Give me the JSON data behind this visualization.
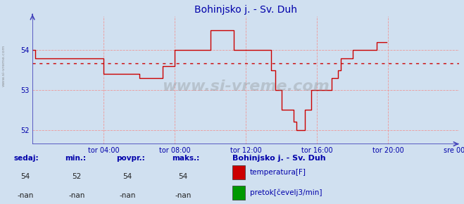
{
  "title": "Bohinjsko j. - Sv. Duh",
  "bg_color": "#d0e0f0",
  "plot_bg_color": "#d0e0f0",
  "line_color": "#cc0000",
  "avg_line_color": "#cc0000",
  "axis_color": "#4444bb",
  "grid_color": "#ee9999",
  "text_color": "#0000aa",
  "ylim": [
    51.65,
    54.85
  ],
  "yticks": [
    52,
    53,
    54
  ],
  "xlim": [
    0,
    288
  ],
  "xtick_positions": [
    48,
    96,
    144,
    192,
    240,
    288
  ],
  "xtick_labels": [
    "tor 04:00",
    "tor 08:00",
    "tor 12:00",
    "tor 16:00",
    "tor 20:00",
    "sre 00:00"
  ],
  "avg_value": 53.68,
  "temp_data": [
    54.0,
    54.0,
    53.8,
    53.8,
    53.8,
    53.8,
    53.8,
    53.8,
    53.8,
    53.8,
    53.8,
    53.8,
    53.8,
    53.8,
    53.8,
    53.8,
    53.8,
    53.8,
    53.8,
    53.8,
    53.8,
    53.8,
    53.8,
    53.8,
    53.8,
    53.8,
    53.8,
    53.8,
    53.8,
    53.8,
    53.8,
    53.8,
    53.8,
    53.8,
    53.8,
    53.8,
    53.8,
    53.8,
    53.8,
    53.8,
    53.8,
    53.8,
    53.8,
    53.8,
    53.8,
    53.8,
    53.8,
    53.8,
    53.4,
    53.4,
    53.4,
    53.4,
    53.4,
    53.4,
    53.4,
    53.4,
    53.4,
    53.4,
    53.4,
    53.4,
    53.4,
    53.4,
    53.4,
    53.4,
    53.4,
    53.4,
    53.4,
    53.4,
    53.4,
    53.4,
    53.4,
    53.4,
    53.3,
    53.3,
    53.3,
    53.3,
    53.3,
    53.3,
    53.3,
    53.3,
    53.3,
    53.3,
    53.3,
    53.3,
    53.3,
    53.3,
    53.3,
    53.3,
    53.6,
    53.6,
    53.6,
    53.6,
    53.6,
    53.6,
    53.6,
    53.6,
    54.0,
    54.0,
    54.0,
    54.0,
    54.0,
    54.0,
    54.0,
    54.0,
    54.0,
    54.0,
    54.0,
    54.0,
    54.0,
    54.0,
    54.0,
    54.0,
    54.0,
    54.0,
    54.0,
    54.0,
    54.0,
    54.0,
    54.0,
    54.0,
    54.5,
    54.5,
    54.5,
    54.5,
    54.5,
    54.5,
    54.5,
    54.5,
    54.5,
    54.5,
    54.5,
    54.5,
    54.5,
    54.5,
    54.5,
    54.5,
    54.0,
    54.0,
    54.0,
    54.0,
    54.0,
    54.0,
    54.0,
    54.0,
    54.0,
    54.0,
    54.0,
    54.0,
    54.0,
    54.0,
    54.0,
    54.0,
    54.0,
    54.0,
    54.0,
    54.0,
    54.0,
    54.0,
    54.0,
    54.0,
    54.0,
    53.5,
    53.5,
    53.5,
    53.0,
    53.0,
    53.0,
    53.0,
    52.5,
    52.5,
    52.5,
    52.5,
    52.5,
    52.5,
    52.5,
    52.5,
    52.2,
    52.2,
    52.0,
    52.0,
    52.0,
    52.0,
    52.0,
    52.0,
    52.5,
    52.5,
    52.5,
    52.5,
    53.0,
    53.0,
    53.0,
    53.0,
    53.0,
    53.0,
    53.0,
    53.0,
    53.0,
    53.0,
    53.0,
    53.0,
    53.0,
    53.0,
    53.3,
    53.3,
    53.3,
    53.3,
    53.5,
    53.5,
    53.8,
    53.8,
    53.8,
    53.8,
    53.8,
    53.8,
    53.8,
    53.8,
    54.0,
    54.0,
    54.0,
    54.0,
    54.0,
    54.0,
    54.0,
    54.0,
    54.0,
    54.0,
    54.0,
    54.0,
    54.0,
    54.0,
    54.0,
    54.0,
    54.2,
    54.2,
    54.2,
    54.2,
    54.2,
    54.2,
    54.2,
    54.2
  ],
  "watermark": "www.si-vreme.com",
  "legend_title": "Bohinjsko j. - Sv. Duh",
  "legend_items": [
    {
      "label": "temperatura[F]",
      "color": "#cc0000"
    },
    {
      "label": "pretok[čevelj3/min]",
      "color": "#009900"
    }
  ],
  "stats_headers": [
    "sedaj:",
    "min.:",
    "povpr.:",
    "maks.:"
  ],
  "stats_temp": [
    "54",
    "52",
    "54",
    "54"
  ],
  "stats_flow": [
    "-nan",
    "-nan",
    "-nan",
    "-nan"
  ],
  "figsize": [
    6.59,
    2.9
  ],
  "dpi": 100
}
